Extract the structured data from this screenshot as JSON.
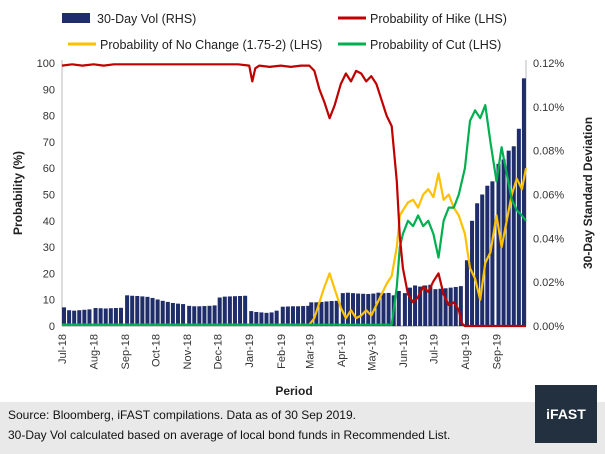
{
  "chart_data": {
    "type": "bar+line",
    "xlabel": "Period",
    "ylabel_left": "Probability (%)",
    "ylabel_right": "30-Day Standard Deviation",
    "ylim_left": [
      0,
      100
    ],
    "ylim_right": [
      0,
      0.12
    ],
    "left_ticks": [
      "0",
      "10",
      "20",
      "30",
      "40",
      "50",
      "60",
      "70",
      "80",
      "90",
      "100"
    ],
    "right_ticks": [
      "0.00%",
      "0.02%",
      "0.04%",
      "0.06%",
      "0.08%",
      "0.10%",
      "0.12%"
    ],
    "x_ticks": [
      "Jul-18",
      "Aug-18",
      "Sep-18",
      "Oct-18",
      "Nov-18",
      "Dec-18",
      "Jan-19",
      "Feb-19",
      "Mar-19",
      "Apr-19",
      "May-19",
      "Jun-19",
      "Jul-19",
      "Aug-19",
      "Sep-19"
    ],
    "x_tick_dates": [
      "2018-07-01",
      "2018-08-01",
      "2018-09-01",
      "2018-10-01",
      "2018-11-01",
      "2018-12-01",
      "2019-01-01",
      "2019-02-01",
      "2019-03-01",
      "2019-04-01",
      "2019-05-01",
      "2019-06-01",
      "2019-07-01",
      "2019-08-01",
      "2019-09-01"
    ],
    "x_range": [
      "2018-07-01",
      "2019-09-30"
    ],
    "legend_position": "top",
    "series": [
      {
        "name": "30-Day Vol (RHS)",
        "kind": "bar",
        "axis": "right",
        "color": "#1f2d6b",
        "points": [
          [
            "2018-07-01",
            0.0085
          ],
          [
            "2018-07-06",
            0.0072
          ],
          [
            "2018-07-11",
            0.007
          ],
          [
            "2018-07-16",
            0.0072
          ],
          [
            "2018-07-21",
            0.0074
          ],
          [
            "2018-07-26",
            0.0076
          ],
          [
            "2018-08-01",
            0.0082
          ],
          [
            "2018-08-06",
            0.0081
          ],
          [
            "2018-08-11",
            0.008
          ],
          [
            "2018-08-16",
            0.0081
          ],
          [
            "2018-08-21",
            0.0082
          ],
          [
            "2018-08-26",
            0.0083
          ],
          [
            "2018-09-01",
            0.014
          ],
          [
            "2018-09-06",
            0.0138
          ],
          [
            "2018-09-11",
            0.0137
          ],
          [
            "2018-09-16",
            0.0135
          ],
          [
            "2018-09-21",
            0.0133
          ],
          [
            "2018-09-26",
            0.0128
          ],
          [
            "2018-10-01",
            0.0121
          ],
          [
            "2018-10-06",
            0.0115
          ],
          [
            "2018-10-11",
            0.011
          ],
          [
            "2018-10-16",
            0.0105
          ],
          [
            "2018-10-21",
            0.0102
          ],
          [
            "2018-10-26",
            0.01
          ],
          [
            "2018-11-01",
            0.0092
          ],
          [
            "2018-11-06",
            0.009
          ],
          [
            "2018-11-11",
            0.009
          ],
          [
            "2018-11-16",
            0.0091
          ],
          [
            "2018-11-21",
            0.0092
          ],
          [
            "2018-11-26",
            0.0094
          ],
          [
            "2018-12-01",
            0.013
          ],
          [
            "2018-12-06",
            0.0134
          ],
          [
            "2018-12-11",
            0.0135
          ],
          [
            "2018-12-16",
            0.0136
          ],
          [
            "2018-12-21",
            0.0137
          ],
          [
            "2018-12-26",
            0.0138
          ],
          [
            "2019-01-01",
            0.0068
          ],
          [
            "2019-01-06",
            0.0064
          ],
          [
            "2019-01-11",
            0.0062
          ],
          [
            "2019-01-16",
            0.006
          ],
          [
            "2019-01-21",
            0.0062
          ],
          [
            "2019-01-26",
            0.007
          ],
          [
            "2019-02-01",
            0.0088
          ],
          [
            "2019-02-06",
            0.0089
          ],
          [
            "2019-02-11",
            0.009
          ],
          [
            "2019-02-16",
            0.009
          ],
          [
            "2019-02-21",
            0.0091
          ],
          [
            "2019-02-26",
            0.0092
          ],
          [
            "2019-03-01",
            0.0108
          ],
          [
            "2019-03-06",
            0.0108
          ],
          [
            "2019-03-11",
            0.011
          ],
          [
            "2019-03-16",
            0.0112
          ],
          [
            "2019-03-21",
            0.0114
          ],
          [
            "2019-03-26",
            0.0115
          ],
          [
            "2019-04-01",
            0.015
          ],
          [
            "2019-04-06",
            0.0152
          ],
          [
            "2019-04-11",
            0.015
          ],
          [
            "2019-04-16",
            0.0148
          ],
          [
            "2019-04-21",
            0.0147
          ],
          [
            "2019-04-26",
            0.0146
          ],
          [
            "2019-05-01",
            0.0148
          ],
          [
            "2019-05-06",
            0.0152
          ],
          [
            "2019-05-11",
            0.015
          ],
          [
            "2019-05-16",
            0.0151
          ],
          [
            "2019-05-21",
            0.014
          ],
          [
            "2019-05-26",
            0.016
          ],
          [
            "2019-06-01",
            0.015
          ],
          [
            "2019-06-06",
            0.0175
          ],
          [
            "2019-06-11",
            0.0185
          ],
          [
            "2019-06-16",
            0.018
          ],
          [
            "2019-06-21",
            0.0185
          ],
          [
            "2019-06-26",
            0.0188
          ],
          [
            "2019-07-01",
            0.0168
          ],
          [
            "2019-07-06",
            0.017
          ],
          [
            "2019-07-11",
            0.0172
          ],
          [
            "2019-07-16",
            0.0175
          ],
          [
            "2019-07-21",
            0.0178
          ],
          [
            "2019-07-26",
            0.0182
          ],
          [
            "2019-08-01",
            0.03
          ],
          [
            "2019-08-06",
            0.048
          ],
          [
            "2019-08-11",
            0.056
          ],
          [
            "2019-08-16",
            0.06
          ],
          [
            "2019-08-21",
            0.064
          ],
          [
            "2019-08-26",
            0.066
          ],
          [
            "2019-09-01",
            0.074
          ],
          [
            "2019-09-06",
            0.076
          ],
          [
            "2019-09-11",
            0.08
          ],
          [
            "2019-09-16",
            0.082
          ],
          [
            "2019-09-21",
            0.09
          ],
          [
            "2019-09-26",
            0.113
          ]
        ]
      },
      {
        "name": "Probability of Hike (LHS)",
        "kind": "line",
        "axis": "left",
        "color": "#c00000",
        "points": [
          [
            "2018-07-01",
            99
          ],
          [
            "2018-07-11",
            99.5
          ],
          [
            "2018-07-21",
            99
          ],
          [
            "2018-08-01",
            99.5
          ],
          [
            "2018-08-11",
            99
          ],
          [
            "2018-08-21",
            99.5
          ],
          [
            "2018-09-01",
            99.5
          ],
          [
            "2018-09-11",
            99.5
          ],
          [
            "2018-09-21",
            99.5
          ],
          [
            "2018-10-01",
            99.5
          ],
          [
            "2018-10-11",
            99.5
          ],
          [
            "2018-10-21",
            99.5
          ],
          [
            "2018-11-01",
            99.5
          ],
          [
            "2018-11-11",
            99.5
          ],
          [
            "2018-11-21",
            99.5
          ],
          [
            "2018-12-01",
            99.5
          ],
          [
            "2018-12-11",
            99.5
          ],
          [
            "2018-12-21",
            99.5
          ],
          [
            "2019-01-01",
            99
          ],
          [
            "2019-01-04",
            93
          ],
          [
            "2019-01-07",
            98
          ],
          [
            "2019-01-11",
            99
          ],
          [
            "2019-01-21",
            98.5
          ],
          [
            "2019-02-01",
            99
          ],
          [
            "2019-02-11",
            98.5
          ],
          [
            "2019-02-21",
            99
          ],
          [
            "2019-03-01",
            99
          ],
          [
            "2019-03-06",
            97
          ],
          [
            "2019-03-11",
            90
          ],
          [
            "2019-03-16",
            85
          ],
          [
            "2019-03-21",
            79
          ],
          [
            "2019-03-26",
            84
          ],
          [
            "2019-04-01",
            92
          ],
          [
            "2019-04-06",
            96
          ],
          [
            "2019-04-11",
            93
          ],
          [
            "2019-04-16",
            97
          ],
          [
            "2019-04-21",
            96
          ],
          [
            "2019-04-26",
            93
          ],
          [
            "2019-05-01",
            95
          ],
          [
            "2019-05-06",
            92
          ],
          [
            "2019-05-11",
            86
          ],
          [
            "2019-05-16",
            80
          ],
          [
            "2019-05-21",
            76
          ],
          [
            "2019-05-26",
            55
          ],
          [
            "2019-05-29",
            34
          ],
          [
            "2019-06-01",
            22
          ],
          [
            "2019-06-06",
            12
          ],
          [
            "2019-06-11",
            9
          ],
          [
            "2019-06-16",
            11
          ],
          [
            "2019-06-21",
            15
          ],
          [
            "2019-06-26",
            13
          ],
          [
            "2019-07-01",
            17
          ],
          [
            "2019-07-06",
            20
          ],
          [
            "2019-07-11",
            12
          ],
          [
            "2019-07-16",
            8
          ],
          [
            "2019-07-21",
            9
          ],
          [
            "2019-07-26",
            6
          ],
          [
            "2019-07-29",
            1
          ],
          [
            "2019-08-01",
            0
          ],
          [
            "2019-08-15",
            0
          ],
          [
            "2019-09-01",
            0
          ],
          [
            "2019-09-15",
            0
          ],
          [
            "2019-09-30",
            0
          ]
        ]
      },
      {
        "name": "Probability of No Change (1.75-2) (LHS)",
        "kind": "line",
        "axis": "left",
        "color": "#ffc000",
        "points": [
          [
            "2018-07-01",
            0.5
          ],
          [
            "2018-12-01",
            0.5
          ],
          [
            "2019-02-01",
            0.5
          ],
          [
            "2019-03-01",
            0.5
          ],
          [
            "2019-03-06",
            3
          ],
          [
            "2019-03-11",
            9
          ],
          [
            "2019-03-16",
            15
          ],
          [
            "2019-03-21",
            20
          ],
          [
            "2019-03-26",
            14
          ],
          [
            "2019-04-01",
            7
          ],
          [
            "2019-04-06",
            3
          ],
          [
            "2019-04-11",
            6
          ],
          [
            "2019-04-16",
            3
          ],
          [
            "2019-04-21",
            4
          ],
          [
            "2019-04-26",
            6
          ],
          [
            "2019-05-01",
            4
          ],
          [
            "2019-05-06",
            8
          ],
          [
            "2019-05-11",
            12
          ],
          [
            "2019-05-16",
            16
          ],
          [
            "2019-05-21",
            19
          ],
          [
            "2019-05-26",
            30
          ],
          [
            "2019-05-29",
            42
          ],
          [
            "2019-06-01",
            44
          ],
          [
            "2019-06-06",
            47
          ],
          [
            "2019-06-11",
            48
          ],
          [
            "2019-06-16",
            45
          ],
          [
            "2019-06-21",
            50
          ],
          [
            "2019-06-26",
            52
          ],
          [
            "2019-07-01",
            49
          ],
          [
            "2019-07-06",
            58
          ],
          [
            "2019-07-11",
            48
          ],
          [
            "2019-07-16",
            50
          ],
          [
            "2019-07-21",
            45
          ],
          [
            "2019-07-26",
            42
          ],
          [
            "2019-08-01",
            35
          ],
          [
            "2019-08-06",
            22
          ],
          [
            "2019-08-11",
            18
          ],
          [
            "2019-08-16",
            10
          ],
          [
            "2019-08-21",
            24
          ],
          [
            "2019-08-26",
            28
          ],
          [
            "2019-09-01",
            42
          ],
          [
            "2019-09-06",
            30
          ],
          [
            "2019-09-11",
            40
          ],
          [
            "2019-09-16",
            50
          ],
          [
            "2019-09-21",
            56
          ],
          [
            "2019-09-26",
            52
          ],
          [
            "2019-09-30",
            60
          ]
        ]
      },
      {
        "name": "Probability of Cut (LHS)",
        "kind": "line",
        "axis": "left",
        "color": "#00b050",
        "points": [
          [
            "2018-07-01",
            0.5
          ],
          [
            "2018-12-01",
            0.5
          ],
          [
            "2019-02-01",
            0.5
          ],
          [
            "2019-03-01",
            0.5
          ],
          [
            "2019-04-01",
            0.5
          ],
          [
            "2019-05-01",
            0.5
          ],
          [
            "2019-05-21",
            0.5
          ],
          [
            "2019-05-26",
            15
          ],
          [
            "2019-05-29",
            30
          ],
          [
            "2019-06-01",
            35
          ],
          [
            "2019-06-06",
            40
          ],
          [
            "2019-06-11",
            38
          ],
          [
            "2019-06-16",
            42
          ],
          [
            "2019-06-21",
            38
          ],
          [
            "2019-06-26",
            40
          ],
          [
            "2019-07-01",
            35
          ],
          [
            "2019-07-06",
            26
          ],
          [
            "2019-07-11",
            40
          ],
          [
            "2019-07-16",
            45
          ],
          [
            "2019-07-21",
            45
          ],
          [
            "2019-07-26",
            50
          ],
          [
            "2019-08-01",
            60
          ],
          [
            "2019-08-06",
            78
          ],
          [
            "2019-08-11",
            82
          ],
          [
            "2019-08-16",
            79
          ],
          [
            "2019-08-21",
            84
          ],
          [
            "2019-08-26",
            70
          ],
          [
            "2019-09-01",
            55
          ],
          [
            "2019-09-06",
            68
          ],
          [
            "2019-09-11",
            58
          ],
          [
            "2019-09-16",
            48
          ],
          [
            "2019-09-21",
            44
          ],
          [
            "2019-09-26",
            42
          ],
          [
            "2019-09-30",
            40
          ]
        ]
      }
    ]
  },
  "footer": {
    "line1": "Source: Bloomberg, iFAST compilations. Data as of 30 Sep 2019.",
    "line2": "30-Day Vol calculated based on average of local bond funds in Recommended List.",
    "logo": "iFAST"
  }
}
